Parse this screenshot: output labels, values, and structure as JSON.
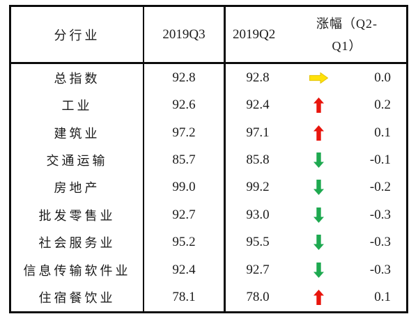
{
  "table": {
    "header": {
      "industry": "分行业",
      "q3": "2019Q3",
      "q2": "2019Q2",
      "change_line1": "涨幅（Q2-",
      "change_line2": "Q1）"
    },
    "rows": [
      {
        "industry": "总指数",
        "q3": "92.8",
        "q2": "92.8",
        "trend": "flat",
        "change": "0.0"
      },
      {
        "industry": "工业",
        "q3": "92.6",
        "q2": "92.4",
        "trend": "up",
        "change": "0.2"
      },
      {
        "industry": "建筑业",
        "q3": "97.2",
        "q2": "97.1",
        "trend": "up",
        "change": "0.1"
      },
      {
        "industry": "交通运输",
        "q3": "85.7",
        "q2": "85.8",
        "trend": "down",
        "change": "-0.1"
      },
      {
        "industry": "房地产",
        "q3": "99.0",
        "q2": "99.2",
        "trend": "down",
        "change": "-0.2"
      },
      {
        "industry": "批发零售业",
        "q3": "92.7",
        "q2": "93.0",
        "trend": "down",
        "change": "-0.3"
      },
      {
        "industry": "社会服务业",
        "q3": "95.2",
        "q2": "95.5",
        "trend": "down",
        "change": "-0.3"
      },
      {
        "industry": "信息传输软件业",
        "q3": "92.4",
        "q2": "92.7",
        "trend": "down",
        "change": "-0.3"
      },
      {
        "industry": "住宿餐饮业",
        "q3": "78.1",
        "q2": "78.0",
        "trend": "up",
        "change": "0.1"
      }
    ],
    "trend_colors": {
      "up": "#e8150d",
      "down": "#1ea950",
      "flat": "#ffe10a",
      "flat_edge": "#e3c309",
      "border": "#0c0c0c"
    }
  },
  "chart_data": {
    "type": "table",
    "title": "分行业景气指数 2019Q3 vs 2019Q2",
    "columns": [
      "分行业",
      "2019Q3",
      "2019Q2",
      "涨幅（Q2-Q1）"
    ],
    "rows": [
      [
        "总指数",
        92.8,
        92.8,
        0.0
      ],
      [
        "工业",
        92.6,
        92.4,
        0.2
      ],
      [
        "建筑业",
        97.2,
        97.1,
        0.1
      ],
      [
        "交通运输",
        85.7,
        85.8,
        -0.1
      ],
      [
        "房地产",
        99.0,
        99.2,
        -0.2
      ],
      [
        "批发零售业",
        92.7,
        93.0,
        -0.3
      ],
      [
        "社会服务业",
        95.2,
        95.5,
        -0.3
      ],
      [
        "信息传输软件业",
        92.4,
        92.7,
        -0.3
      ],
      [
        "住宿餐饮业",
        78.1,
        78.0,
        0.1
      ]
    ],
    "trend_indicators": [
      "flat",
      "up",
      "up",
      "down",
      "down",
      "down",
      "down",
      "down",
      "up"
    ]
  }
}
